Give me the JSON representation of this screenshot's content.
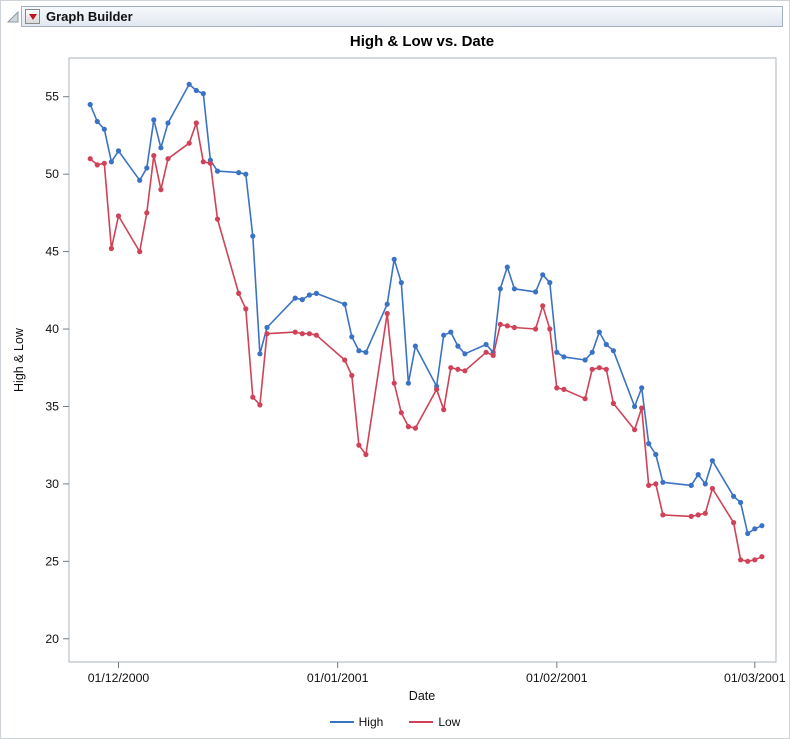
{
  "header": {
    "title": "Graph Builder"
  },
  "chart_data": {
    "type": "line",
    "title": "High & Low vs. Date",
    "xlabel": "Date",
    "ylabel": "High & Low",
    "x_domain": [
      "2000-11-24",
      "2001-03-04"
    ],
    "ylim": [
      18.5,
      57.5
    ],
    "y_ticks": [
      20,
      25,
      30,
      35,
      40,
      45,
      50,
      55
    ],
    "x_ticks": [
      {
        "date": "2000-12-01",
        "label": "01/12/2000"
      },
      {
        "date": "2001-01-01",
        "label": "01/01/2001"
      },
      {
        "date": "2001-02-01",
        "label": "01/02/2001"
      },
      {
        "date": "2001-03-01",
        "label": "01/03/2001"
      }
    ],
    "grid": false,
    "legend_position": "bottom",
    "dates": [
      "2000-11-27",
      "2000-11-28",
      "2000-11-29",
      "2000-11-30",
      "2000-12-01",
      "2000-12-04",
      "2000-12-05",
      "2000-12-06",
      "2000-12-07",
      "2000-12-08",
      "2000-12-11",
      "2000-12-12",
      "2000-12-13",
      "2000-12-14",
      "2000-12-15",
      "2000-12-18",
      "2000-12-19",
      "2000-12-20",
      "2000-12-21",
      "2000-12-22",
      "2000-12-26",
      "2000-12-27",
      "2000-12-28",
      "2000-12-29",
      "2001-01-02",
      "2001-01-03",
      "2001-01-04",
      "2001-01-05",
      "2001-01-08",
      "2001-01-09",
      "2001-01-10",
      "2001-01-11",
      "2001-01-12",
      "2001-01-15",
      "2001-01-16",
      "2001-01-17",
      "2001-01-18",
      "2001-01-19",
      "2001-01-22",
      "2001-01-23",
      "2001-01-24",
      "2001-01-25",
      "2001-01-26",
      "2001-01-29",
      "2001-01-30",
      "2001-01-31",
      "2001-02-01",
      "2001-02-02",
      "2001-02-05",
      "2001-02-06",
      "2001-02-07",
      "2001-02-08",
      "2001-02-09",
      "2001-02-12",
      "2001-02-13",
      "2001-02-14",
      "2001-02-15",
      "2001-02-16",
      "2001-02-20",
      "2001-02-21",
      "2001-02-22",
      "2001-02-23",
      "2001-02-26",
      "2001-02-27",
      "2001-02-28",
      "2001-03-01",
      "2001-03-02"
    ],
    "series": [
      {
        "name": "High",
        "color": "#3b73c4",
        "values": [
          54.5,
          53.4,
          52.9,
          50.8,
          51.5,
          49.6,
          50.4,
          53.5,
          51.7,
          53.3,
          55.8,
          55.4,
          55.2,
          50.9,
          50.2,
          50.1,
          50.0,
          46.0,
          38.4,
          40.1,
          42.0,
          41.9,
          42.2,
          42.3,
          41.6,
          39.5,
          38.6,
          38.5,
          41.6,
          44.5,
          43.0,
          36.5,
          38.9,
          36.3,
          39.6,
          39.8,
          38.9,
          38.4,
          39.0,
          38.5,
          42.6,
          44.0,
          42.6,
          42.4,
          43.5,
          43.0,
          38.5,
          38.2,
          38.0,
          38.5,
          39.8,
          39.0,
          38.6,
          35.0,
          36.2,
          32.6,
          31.9,
          30.1,
          29.9,
          30.6,
          30.0,
          31.5,
          29.2,
          28.8,
          26.8,
          27.1,
          27.3
        ]
      },
      {
        "name": "Low",
        "color": "#cf4257",
        "values": [
          51.0,
          50.6,
          50.7,
          45.2,
          47.3,
          45.0,
          47.5,
          51.2,
          49.0,
          51.0,
          52.0,
          53.3,
          50.8,
          50.7,
          47.1,
          42.3,
          41.3,
          35.6,
          35.1,
          39.7,
          39.8,
          39.7,
          39.7,
          39.6,
          38.0,
          37.0,
          32.5,
          31.9,
          41.0,
          36.5,
          34.6,
          33.7,
          33.6,
          36.1,
          34.8,
          37.5,
          37.4,
          37.3,
          38.5,
          38.3,
          40.3,
          40.2,
          40.1,
          40.0,
          41.5,
          40.0,
          36.2,
          36.1,
          35.5,
          37.4,
          37.5,
          37.4,
          35.2,
          33.5,
          34.9,
          29.9,
          30.0,
          28.0,
          27.9,
          28.0,
          28.1,
          29.7,
          27.5,
          25.1,
          25.0,
          25.1,
          25.3
        ]
      }
    ],
    "colors": {
      "axis_frame": "#a9b3bd",
      "tick": "#6e7a85",
      "text": "#101010"
    }
  }
}
